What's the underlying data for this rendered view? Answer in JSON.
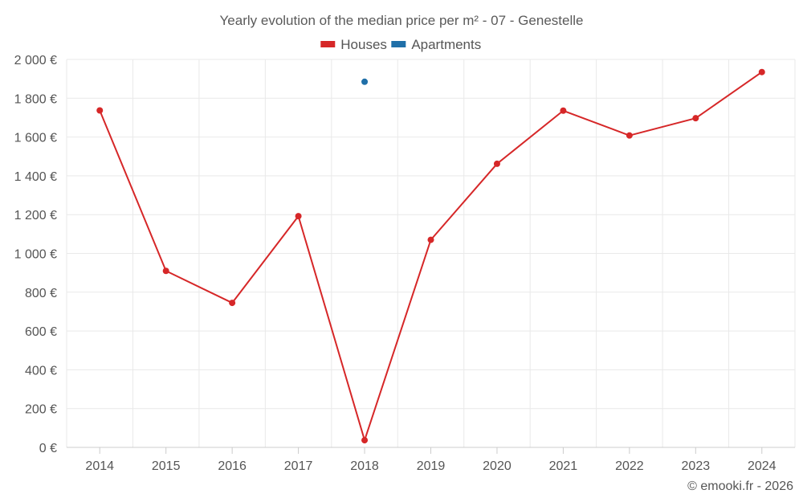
{
  "chart_data": {
    "type": "line",
    "title": "Yearly evolution of the median price per m² - 07 - Genestelle",
    "categories": [
      "2014",
      "2015",
      "2016",
      "2017",
      "2018",
      "2019",
      "2020",
      "2021",
      "2022",
      "2023",
      "2024"
    ],
    "ylim": [
      0,
      2000
    ],
    "yticks": [
      0,
      200,
      400,
      600,
      800,
      1000,
      1200,
      1400,
      1600,
      1800,
      2000
    ],
    "ytick_labels": [
      "0 €",
      "200 €",
      "400 €",
      "600 €",
      "800 €",
      "1 000 €",
      "1 200 €",
      "1 400 €",
      "1 600 €",
      "1 800 €",
      "2 000 €"
    ],
    "series": [
      {
        "name": "Houses",
        "color": "#d62728",
        "values": [
          1737,
          910,
          745,
          1192,
          37,
          1070,
          1462,
          1736,
          1608,
          1697,
          1935
        ]
      },
      {
        "name": "Apartments",
        "color": "#1f6fa8",
        "values": [
          null,
          null,
          null,
          null,
          1885,
          null,
          null,
          null,
          null,
          null,
          null
        ]
      }
    ],
    "legend": "top-center",
    "grid": true
  },
  "credit": "© emooki.fr - 2026"
}
